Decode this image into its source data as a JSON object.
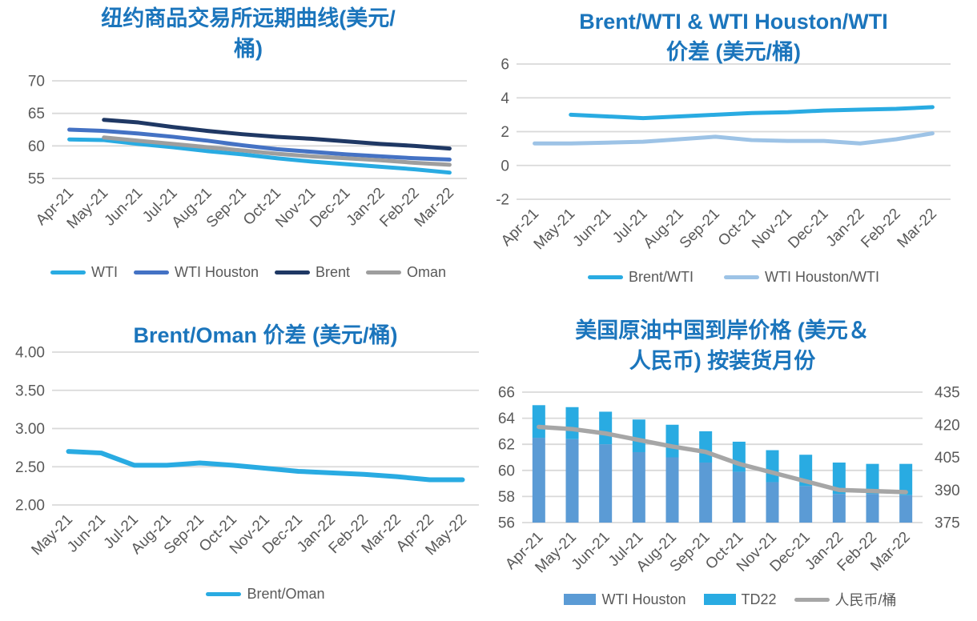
{
  "page": {
    "background": "#ffffff",
    "title_color": "#1B75BC",
    "axis_label_color": "#595959",
    "gridline_color": "#D9D9D9"
  },
  "chart_data": [
    {
      "type": "line",
      "title": "纽约商品交易所远期曲线(美元/桶)",
      "title_lines": [
        "纽约商品交易所远期曲线(美元/",
        "桶)"
      ],
      "categories": [
        "Apr-21",
        "May-21",
        "Jun-21",
        "Jul-21",
        "Aug-21",
        "Sep-21",
        "Oct-21",
        "Nov-21",
        "Dec-21",
        "Jan-22",
        "Feb-22",
        "Mar-22"
      ],
      "ylim": [
        55,
        70
      ],
      "ytick_values": [
        55,
        60,
        65,
        70
      ],
      "ytick_labels": [
        "55",
        "60",
        "65",
        "70"
      ],
      "grid": true,
      "legend_position": "bottom",
      "series": [
        {
          "name": "WTI",
          "type": "line",
          "color": "#29ABE2",
          "values": [
            61.0,
            60.9,
            60.3,
            59.8,
            59.2,
            58.7,
            58.1,
            57.6,
            57.2,
            56.8,
            56.4,
            55.9
          ]
        },
        {
          "name": "WTI Houston",
          "type": "line",
          "color": "#4472C4",
          "values": [
            62.5,
            62.3,
            61.9,
            61.4,
            60.8,
            60.1,
            59.5,
            59.1,
            58.7,
            58.4,
            58.1,
            57.9
          ]
        },
        {
          "name": "Brent",
          "type": "line",
          "color": "#1F3864",
          "values": [
            null,
            64.0,
            63.6,
            62.9,
            62.3,
            61.8,
            61.4,
            61.1,
            60.7,
            60.3,
            60.0,
            59.6
          ]
        },
        {
          "name": "Oman",
          "type": "line",
          "color": "#9E9E9E",
          "values": [
            null,
            61.3,
            60.8,
            60.3,
            59.8,
            59.3,
            58.8,
            58.4,
            58.1,
            57.8,
            57.4,
            57.1
          ]
        }
      ]
    },
    {
      "type": "line",
      "title": "Brent/WTI & WTI Houston/WTI 价差 (美元/桶)",
      "title_lines": [
        "Brent/WTI & WTI Houston/WTI",
        "价差 (美元/桶)"
      ],
      "categories": [
        "Apr-21",
        "May-21",
        "Jun-21",
        "Jul-21",
        "Aug-21",
        "Sep-21",
        "Oct-21",
        "Nov-21",
        "Dec-21",
        "Jan-22",
        "Feb-22",
        "Mar-22"
      ],
      "ylim": [
        -2,
        6
      ],
      "ytick_values": [
        -2,
        0,
        2,
        4,
        6
      ],
      "ytick_labels": [
        "-2",
        "0",
        "2",
        "4",
        "6"
      ],
      "grid": true,
      "legend_position": "bottom",
      "series": [
        {
          "name": "Brent/WTI",
          "type": "line",
          "color": "#29ABE2",
          "values": [
            null,
            3.0,
            2.9,
            2.8,
            2.9,
            3.0,
            3.1,
            3.15,
            3.25,
            3.3,
            3.35,
            3.45
          ]
        },
        {
          "name": "WTI Houston/WTI",
          "type": "line",
          "color": "#9DC3E6",
          "values": [
            1.3,
            1.3,
            1.35,
            1.4,
            1.55,
            1.7,
            1.5,
            1.45,
            1.45,
            1.3,
            1.55,
            1.9
          ]
        }
      ]
    },
    {
      "type": "line",
      "title": "Brent/Oman 价差 (美元/桶)",
      "title_lines": [
        "Brent/Oman 价差 (美元/桶)"
      ],
      "categories": [
        "May-21",
        "Jun-21",
        "Jul-21",
        "Aug-21",
        "Sep-21",
        "Oct-21",
        "Nov-21",
        "Dec-21",
        "Jan-22",
        "Feb-22",
        "Mar-22",
        "Apr-22",
        "May-22"
      ],
      "ylim": [
        2,
        4
      ],
      "ytick_values": [
        2.0,
        2.5,
        3.0,
        3.5,
        4.0
      ],
      "ytick_labels": [
        "2.00",
        "2.50",
        "3.00",
        "3.50",
        "4.00"
      ],
      "grid": true,
      "legend_position": "bottom",
      "series": [
        {
          "name": "Brent/Oman",
          "type": "line",
          "color": "#29ABE2",
          "values": [
            2.7,
            2.68,
            2.52,
            2.52,
            2.55,
            2.52,
            2.48,
            2.44,
            2.42,
            2.4,
            2.37,
            2.33,
            2.33
          ]
        }
      ]
    },
    {
      "type": "bar",
      "title": "美国原油中国到岸价格 (美元＆人民币) 按装货月份",
      "title_lines": [
        "美国原油中国到岸价格 (美元＆",
        "人民币) 按装货月份"
      ],
      "categories": [
        "Apr-21",
        "May-21",
        "Jun-21",
        "Jul-21",
        "Aug-21",
        "Sep-21",
        "Oct-21",
        "Nov-21",
        "Dec-21",
        "Jan-22",
        "Feb-22",
        "Mar-22"
      ],
      "ylim": [
        56,
        66
      ],
      "ytick_values": [
        56,
        58,
        60,
        62,
        64,
        66
      ],
      "ytick_labels": [
        "56",
        "58",
        "60",
        "62",
        "64",
        "66"
      ],
      "y2lim": [
        375,
        435
      ],
      "y2tick_values": [
        375,
        390,
        405,
        420,
        435
      ],
      "y2tick_labels": [
        "375",
        "390",
        "405",
        "420",
        "435"
      ],
      "grid": true,
      "legend_position": "bottom",
      "bars_stacked": true,
      "series": [
        {
          "name": "WTI Houston",
          "type": "bar",
          "color": "#5B9BD5",
          "values": [
            62.5,
            62.4,
            62.0,
            61.4,
            61.0,
            60.6,
            59.9,
            59.1,
            58.8,
            58.2,
            58.2,
            58.1
          ]
        },
        {
          "name": "TD22",
          "type": "bar",
          "color": "#29ABE2",
          "values": [
            2.5,
            2.45,
            2.5,
            2.5,
            2.5,
            2.4,
            2.3,
            2.45,
            2.4,
            2.4,
            2.3,
            2.4
          ]
        },
        {
          "name": "人民币/桶",
          "type": "line",
          "axis": "right",
          "color": "#A6A6A6",
          "values": [
            419,
            418,
            416,
            413,
            410,
            407.5,
            402,
            398,
            394,
            390,
            389.5,
            389
          ]
        }
      ]
    }
  ]
}
